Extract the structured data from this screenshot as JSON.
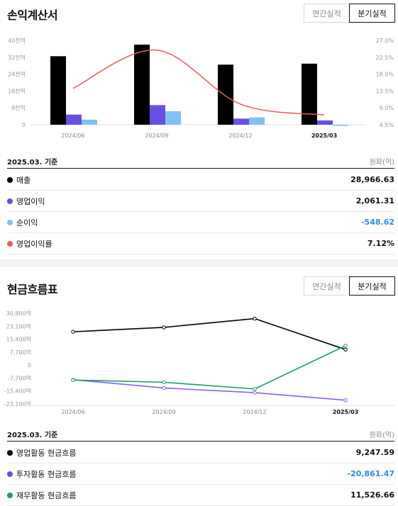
{
  "income": {
    "title": "손익계산서",
    "toggle": {
      "annual": "연간실적",
      "quarterly": "분기실적"
    },
    "basis": "2025.03. 기준",
    "unit": "원화(억)",
    "rows": [
      {
        "label": "매출",
        "value": "28,966.63",
        "color": "#000000",
        "negative": false
      },
      {
        "label": "영업이익",
        "value": "2,061.31",
        "color": "#6a4fe0",
        "negative": false
      },
      {
        "label": "순이익",
        "value": "-548.62",
        "color": "#7fc3f5",
        "negative": true
      },
      {
        "label": "영업이익률",
        "value": "7.12%",
        "color": "#f0595b",
        "negative": false
      }
    ]
  },
  "cashflow": {
    "title": "현금흐름표",
    "toggle": {
      "annual": "연간실적",
      "quarterly": "분기실적"
    },
    "basis": "2025.03. 기준",
    "unit": "원화(억)",
    "rows": [
      {
        "label": "영업활동 현금흐름",
        "value": "9,247.59",
        "color": "#000000",
        "negative": false
      },
      {
        "label": "투자활동 현금흐름",
        "value": "-20,861.47",
        "color": "#6a4fe0",
        "negative": true
      },
      {
        "label": "재무활동 현금흐름",
        "value": "11,526.66",
        "color": "#18a05a",
        "negative": false
      }
    ]
  },
  "chart_data": [
    {
      "type": "bar",
      "categories": [
        "2024/06",
        "2024/09",
        "2024/12",
        "2025/03"
      ],
      "highlight_category": "2025/03",
      "y_left_ticks": [
        "40천억",
        "32천억",
        "24천억",
        "16천억",
        "8천억",
        "0"
      ],
      "y_left_range": [
        0,
        40000
      ],
      "y_right_ticks": [
        "27.0%",
        "22.5%",
        "18.0%",
        "13.5%",
        "9.0%",
        "4.5%"
      ],
      "y_right_range": [
        4.5,
        27.0
      ],
      "series": [
        {
          "name": "매출",
          "kind": "bar",
          "axis": "left",
          "color": "#000000",
          "values": [
            32500,
            38000,
            28500,
            28966.63
          ]
        },
        {
          "name": "영업이익",
          "kind": "bar",
          "axis": "left",
          "color": "#6a4fe0",
          "values": [
            4800,
            9300,
            2900,
            2061.31
          ]
        },
        {
          "name": "순이익",
          "kind": "bar",
          "axis": "left",
          "color": "#7fc3f5",
          "values": [
            2400,
            6400,
            3500,
            -548.62
          ]
        },
        {
          "name": "영업이익률",
          "kind": "line",
          "axis": "right",
          "color": "#f0595b",
          "values": [
            14.2,
            24.4,
            10.0,
            7.12
          ]
        }
      ],
      "grid": false,
      "legend": "none"
    },
    {
      "type": "line",
      "categories": [
        "2024/06",
        "2024/09",
        "2024/12",
        "2025/03"
      ],
      "highlight_category": "2025/03",
      "y_ticks": [
        "30,800억",
        "23,100억",
        "15,400억",
        "7,700억",
        "0",
        "-7,700억",
        "-15,400억",
        "-23,100억"
      ],
      "y_range": [
        -23100,
        30800
      ],
      "series": [
        {
          "name": "영업활동 현금흐름",
          "color": "#000000",
          "values": [
            19800,
            22400,
            27600,
            9247.59
          ]
        },
        {
          "name": "투자활동 현금흐름",
          "color": "#8b5cf6",
          "values": [
            -8700,
            -13600,
            -16400,
            -20861.47
          ]
        },
        {
          "name": "재무활동 현금흐름",
          "color": "#18a05a",
          "values": [
            -8900,
            -10200,
            -14200,
            11526.66
          ]
        }
      ],
      "grid": false,
      "legend": "none"
    }
  ]
}
